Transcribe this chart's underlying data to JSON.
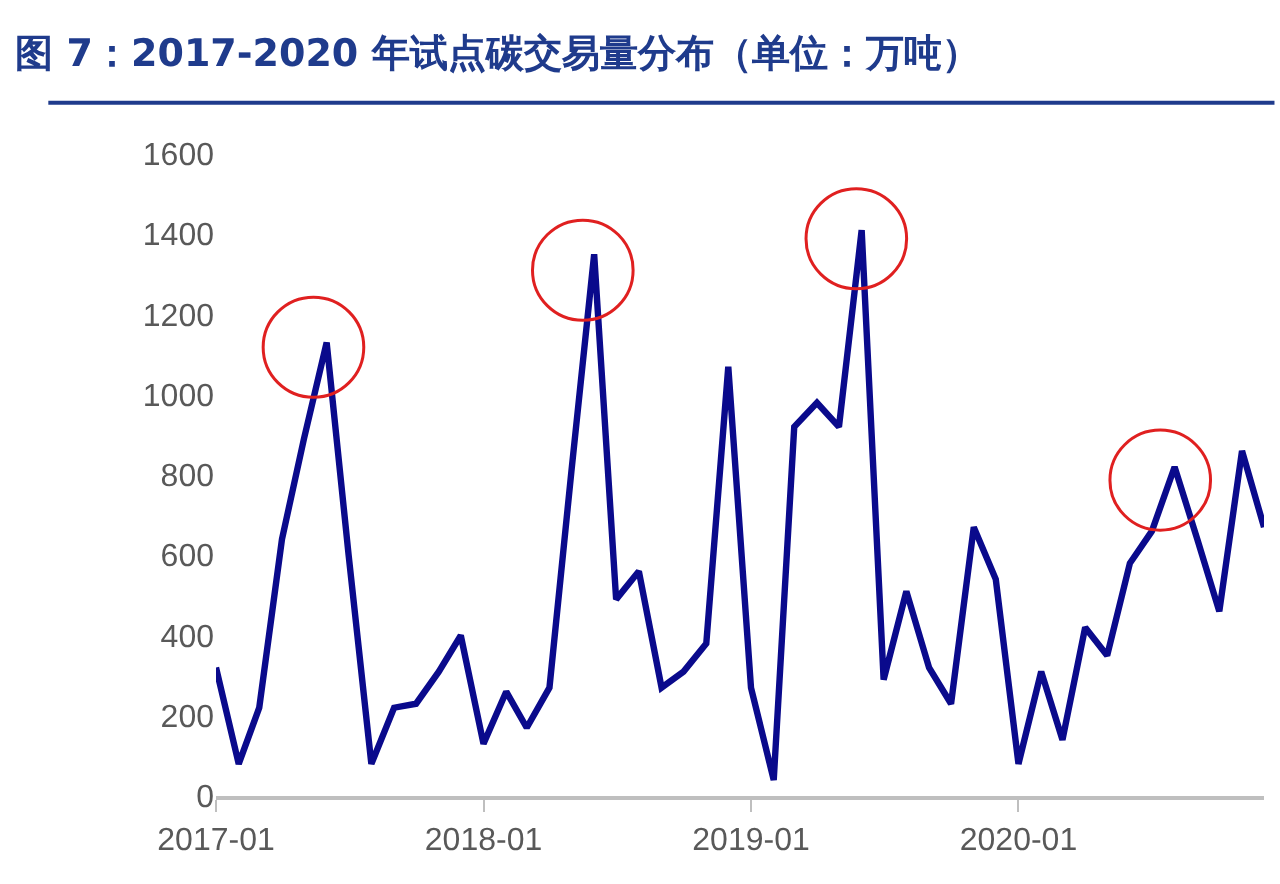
{
  "chart_data": {
    "type": "line",
    "title": "图 7：2017-2020 年试点碳交易量分布（单位：万吨）",
    "x": [
      "2017-01",
      "2017-02",
      "2017-03",
      "2017-04",
      "2017-05",
      "2017-06",
      "2017-07",
      "2017-08",
      "2017-09",
      "2017-10",
      "2017-11",
      "2017-12",
      "2018-01",
      "2018-02",
      "2018-03",
      "2018-04",
      "2018-05",
      "2018-06",
      "2018-07",
      "2018-08",
      "2018-09",
      "2018-10",
      "2018-11",
      "2018-12",
      "2019-01",
      "2019-02",
      "2019-03",
      "2019-04",
      "2019-05",
      "2019-06",
      "2019-07",
      "2019-08",
      "2019-09",
      "2019-10",
      "2019-11",
      "2019-12",
      "2020-01",
      "2020-02",
      "2020-03",
      "2020-04",
      "2020-05",
      "2020-06",
      "2020-07",
      "2020-08",
      "2020-09",
      "2020-10",
      "2020-11",
      "2020-12"
    ],
    "series": [
      {
        "color": "#0a0a8c",
        "values": [
          320,
          80,
          220,
          640,
          890,
          1130,
          600,
          80,
          220,
          230,
          310,
          400,
          130,
          260,
          170,
          270,
          810,
          1350,
          490,
          560,
          270,
          310,
          380,
          1070,
          270,
          40,
          920,
          980,
          920,
          1410,
          290,
          510,
          320,
          230,
          670,
          540,
          80,
          310,
          140,
          420,
          350,
          580,
          660,
          820,
          640,
          460,
          860,
          670
        ]
      }
    ],
    "xlim": [
      "2017-01",
      "2020-12"
    ],
    "xticks": [
      "2017-01",
      "2018-01",
      "2019-01",
      "2020-01"
    ],
    "ylim": [
      0,
      1600
    ],
    "yticks": [
      0,
      200,
      400,
      600,
      800,
      1000,
      1200,
      1400,
      1600
    ],
    "grid": false,
    "marker": "none",
    "line_style": "solid"
  }
}
